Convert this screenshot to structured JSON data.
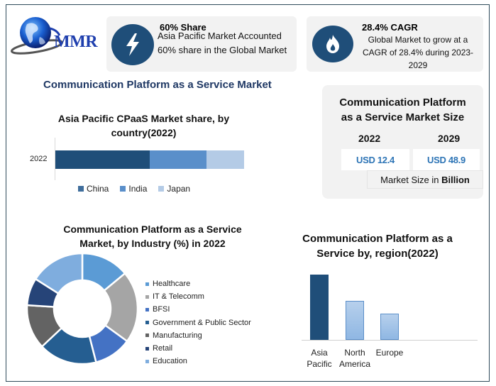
{
  "brand": {
    "logo_text": "MMR",
    "logo_icon": "globe-icon"
  },
  "stat_cards": [
    {
      "icon": "lightning-bolt-icon",
      "title": "60% Share",
      "lines": [
        "Asia Pacific Market Accounted",
        "60% share in the Global Market"
      ]
    },
    {
      "icon": "flame-icon",
      "title": "28.4% CAGR",
      "lines": [
        "Global Market to grow at a",
        "CAGR of 28.4% during 2023-",
        "2029"
      ]
    }
  ],
  "main_title": "Communication Platform as a Service Market",
  "market_size": {
    "title_line1": "Communication Platform",
    "title_line2": "as a Service Market Size",
    "years": [
      "2022",
      "2029"
    ],
    "values": [
      "USD 12.4",
      "USD 48.9"
    ],
    "unit_prefix": "Market Size in ",
    "unit_bold": "Billion"
  },
  "colors": {
    "primary_dark": "#1f4e79",
    "accent_blue": "#2e75b6",
    "title_navy": "#1f3864",
    "card_bg": "#f2f2f2",
    "frame": "#2f4a5a"
  },
  "chart_data": [
    {
      "type": "bar",
      "orientation": "horizontal-stacked",
      "title": "Asia Pacific CPaaS Market share, by country(2022)",
      "title_line1": "Asia Pacific CPaaS Market share, by",
      "title_line2": "country(2022)",
      "categories": [
        "2022"
      ],
      "series": [
        {
          "name": "China",
          "values": [
            50
          ],
          "color": "#1f4e79"
        },
        {
          "name": "India",
          "values": [
            30
          ],
          "color": "#5a8fca"
        },
        {
          "name": "Japan",
          "values": [
            20
          ],
          "color": "#b4cbe6"
        }
      ],
      "legend_position": "bottom",
      "grid": false
    },
    {
      "type": "pie",
      "variant": "donut",
      "title": "Communication Platform as a Service Market, by Industry (%) in 2022",
      "title_line1": "Communication Platform as a Service",
      "title_line2": "Market, by Industry (%) in 2022",
      "categories": [
        "Healthcare",
        "IT & Telecomm",
        "BFSI",
        "Government & Public Sector",
        "Manufacturing",
        "Retail",
        "Education"
      ],
      "values": [
        14,
        21,
        11,
        17,
        13,
        8,
        16
      ],
      "colors": [
        "#5b9bd5",
        "#a5a5a5",
        "#4472c4",
        "#255e91",
        "#636363",
        "#264478",
        "#7fadde"
      ],
      "legend_position": "right"
    },
    {
      "type": "bar",
      "title": "Communication Platform as a Service by, region(2022)",
      "title_line1": "Communication Platform as a",
      "title_line2": "Service by, region(2022)",
      "categories": [
        "Asia Pacific",
        "North America",
        "Europe"
      ],
      "category_lines": [
        [
          "Asia",
          "Pacific"
        ],
        [
          "North",
          "America"
        ],
        [
          "Europe",
          ""
        ]
      ],
      "values": [
        60,
        36,
        24
      ],
      "colors": [
        "#1f4e79",
        "#9dc3e6",
        "#9dc3e6"
      ],
      "xlabel": "",
      "ylabel": "",
      "grid": false
    }
  ]
}
